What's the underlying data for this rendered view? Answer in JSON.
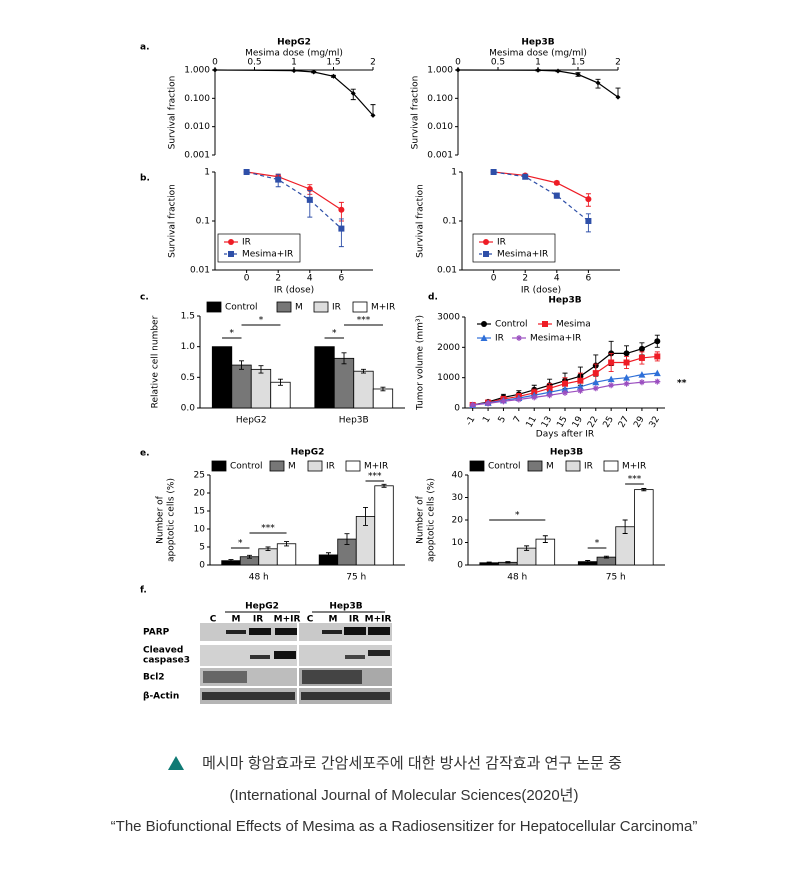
{
  "chart_data": [
    {
      "type": "line",
      "title": "HepG2",
      "x_label": "Mesima dose (mg/ml)",
      "y_label": "Survival fraction",
      "x_axis_top": true,
      "log_y": true,
      "color": "#000000",
      "marker": "diamond",
      "x": [
        0,
        1,
        1.25,
        1.5,
        1.75,
        2
      ],
      "values": [
        1,
        0.95,
        0.85,
        0.6,
        0.15,
        0.025
      ],
      "errors": [
        0,
        0.03,
        0.05,
        0.05,
        0.06,
        0.035
      ],
      "xlim": [
        0,
        2
      ],
      "xticks": [
        0,
        0.5,
        1,
        1.5,
        2
      ],
      "ylim": [
        0.001,
        1
      ],
      "yticks": [
        {
          "value": 1,
          "label": "1.000"
        },
        {
          "value": 0.1,
          "label": "0.100"
        },
        {
          "value": 0.01,
          "label": "0.010"
        },
        {
          "value": 0.001,
          "label": "0.001"
        }
      ]
    },
    {
      "type": "line",
      "title": "Hep3B",
      "x_label": "Mesima dose (mg/ml)",
      "y_label": "Survival fraction",
      "x_axis_top": true,
      "log_y": true,
      "color": "#000000",
      "marker": "diamond",
      "x": [
        0,
        1,
        1.25,
        1.5,
        1.75,
        2
      ],
      "values": [
        1,
        0.98,
        0.92,
        0.7,
        0.35,
        0.11
      ],
      "errors": [
        0,
        0.05,
        0.05,
        0.1,
        0.12,
        0.12
      ],
      "xlim": [
        0,
        2
      ],
      "xticks": [
        0,
        0.5,
        1,
        1.5,
        2
      ],
      "ylim": [
        0.001,
        1
      ],
      "yticks": [
        {
          "value": 1,
          "label": "1.000"
        },
        {
          "value": 0.1,
          "label": "0.100"
        },
        {
          "value": 0.01,
          "label": "0.010"
        },
        {
          "value": 0.001,
          "label": "0.001"
        }
      ]
    },
    {
      "type": "line",
      "x_label": "IR (dose)",
      "y_label": "Survival fraction",
      "log_y": true,
      "legend": "lower left",
      "x": [
        0,
        2,
        4,
        6
      ],
      "series": [
        {
          "name": "IR",
          "color": "#ee1c25",
          "marker": "circle",
          "values": [
            1,
            0.8,
            0.45,
            0.17
          ],
          "errors": [
            0,
            0.1,
            0.1,
            0.07
          ]
        },
        {
          "name": "Mesima+IR",
          "color": "#2e4fa8",
          "marker": "square",
          "dashed": true,
          "values": [
            1,
            0.7,
            0.27,
            0.07
          ],
          "errors": [
            0,
            0.2,
            0.15,
            0.04
          ]
        }
      ],
      "xlim": [
        -2,
        8
      ],
      "xticks": [
        0,
        2,
        4,
        6
      ],
      "ylim": [
        0.01,
        1
      ],
      "yticks": [
        1,
        0.1,
        0.01
      ]
    },
    {
      "type": "line",
      "x_label": "IR (dose)",
      "y_label": "Survival fraction",
      "log_y": true,
      "legend": "lower left",
      "x": [
        0,
        2,
        4,
        6
      ],
      "series": [
        {
          "name": "IR",
          "color": "#ee1c25",
          "marker": "circle",
          "values": [
            1,
            0.85,
            0.6,
            0.28
          ],
          "errors": [
            0,
            0.05,
            0.05,
            0.08
          ]
        },
        {
          "name": "Mesima+IR",
          "color": "#2e4fa8",
          "marker": "square",
          "dashed": true,
          "values": [
            1,
            0.8,
            0.33,
            0.1
          ],
          "errors": [
            0,
            0.05,
            0.04,
            0.04
          ]
        }
      ],
      "xlim": [
        -2,
        8
      ],
      "xticks": [
        0,
        2,
        4,
        6
      ],
      "ylim": [
        0.01,
        1
      ],
      "yticks": [
        1,
        0.1,
        0.01
      ]
    },
    {
      "type": "bar",
      "y_label": "Relative cell number",
      "legend": "top",
      "categories": [
        "HepG2",
        "Hep3B"
      ],
      "series": [
        {
          "name": "Control",
          "color": "#000000",
          "values": [
            1.0,
            1.0
          ],
          "errors": [
            0,
            0
          ]
        },
        {
          "name": "M",
          "color": "#777777",
          "values": [
            0.7,
            0.81
          ],
          "errors": [
            0.07,
            0.09
          ]
        },
        {
          "name": "IR",
          "color": "#dddddd",
          "values": [
            0.63,
            0.6
          ],
          "errors": [
            0.06,
            0.03
          ]
        },
        {
          "name": "M+IR",
          "color": "#ffffff",
          "values": [
            0.42,
            0.31
          ],
          "errors": [
            0.05,
            0.03
          ]
        }
      ],
      "annotations": [
        "*",
        "*",
        "*",
        "***"
      ],
      "ylim": [
        0,
        1.5
      ],
      "yticks": [
        {
          "value": 0,
          "label": "0.0"
        },
        {
          "value": 0.5,
          "label": "0.5"
        },
        {
          "value": 1,
          "label": "1.0"
        },
        {
          "value": 1.5,
          "label": "1.5"
        }
      ]
    },
    {
      "type": "line",
      "title": "Hep3B",
      "x_label": "Days after IR",
      "y_label": "Tumor volume (mm³)",
      "legend": "upper left",
      "categories": [
        "-1",
        "1",
        "5",
        "7",
        "11",
        "13",
        "15",
        "19",
        "22",
        "25",
        "27",
        "29",
        "32"
      ],
      "series": [
        {
          "name": "Control",
          "color": "#000000",
          "marker": "circle",
          "values": [
            100,
            200,
            350,
            450,
            600,
            750,
            900,
            1050,
            1400,
            1800,
            1800,
            1950,
            2200
          ],
          "errors": [
            20,
            50,
            100,
            120,
            150,
            200,
            250,
            300,
            350,
            400,
            250,
            200,
            200
          ]
        },
        {
          "name": "Mesima",
          "color": "#ee1c25",
          "marker": "square",
          "values": [
            100,
            180,
            300,
            380,
            500,
            650,
            800,
            900,
            1150,
            1500,
            1500,
            1650,
            1700
          ],
          "errors": [
            20,
            40,
            80,
            100,
            120,
            150,
            200,
            250,
            300,
            300,
            200,
            200,
            150
          ]
        },
        {
          "name": "IR",
          "color": "#2e6fd8",
          "marker": "triangle",
          "values": [
            100,
            170,
            250,
            330,
            420,
            520,
            620,
            700,
            850,
            950,
            1000,
            1100,
            1150
          ]
        },
        {
          "name": "Mesima+IR",
          "color": "#9b4fc0",
          "marker": "star",
          "values": [
            100,
            150,
            220,
            280,
            350,
            420,
            500,
            570,
            650,
            750,
            800,
            850,
            870
          ]
        }
      ],
      "annotations": [
        "**"
      ],
      "ylim": [
        0,
        3000
      ],
      "yticks": [
        0,
        1000,
        2000,
        3000
      ]
    },
    {
      "type": "bar",
      "title": "HepG2",
      "y_label": [
        "Number of",
        "apoptotic cells (%)"
      ],
      "legend": "top",
      "categories": [
        "48 h",
        "75 h"
      ],
      "series": [
        {
          "name": "Control",
          "color": "#000000",
          "values": [
            1.2,
            2.8
          ],
          "errors": [
            0.3,
            0.6
          ]
        },
        {
          "name": "M",
          "color": "#777777",
          "values": [
            2.3,
            7.2
          ],
          "errors": [
            0.4,
            1.5
          ]
        },
        {
          "name": "IR",
          "color": "#dddddd",
          "values": [
            4.5,
            13.5
          ],
          "errors": [
            0.5,
            2.5
          ]
        },
        {
          "name": "M+IR",
          "color": "#ffffff",
          "values": [
            5.9,
            22
          ],
          "errors": [
            0.6,
            0.4
          ]
        }
      ],
      "annotations": [
        "*",
        "***",
        "***"
      ],
      "ylim": [
        0,
        25
      ],
      "yticks": [
        0,
        5,
        10,
        15,
        20,
        25
      ]
    },
    {
      "type": "bar",
      "title": "Hep3B",
      "y_label": [
        "Number of",
        "apoptotic cells (%)"
      ],
      "legend": "top",
      "categories": [
        "48 h",
        "75 h"
      ],
      "series": [
        {
          "name": "Control",
          "color": "#000000",
          "values": [
            1,
            1.5
          ],
          "errors": [
            0.3,
            0.5
          ]
        },
        {
          "name": "M",
          "color": "#777777",
          "values": [
            1.2,
            3.5
          ],
          "errors": [
            0.3,
            0.4
          ]
        },
        {
          "name": "IR",
          "color": "#dddddd",
          "values": [
            7.5,
            17
          ],
          "errors": [
            1,
            3
          ]
        },
        {
          "name": "M+IR",
          "color": "#ffffff",
          "values": [
            11.5,
            33.5
          ],
          "errors": [
            1.5,
            0.5
          ]
        }
      ],
      "annotations": [
        "*",
        "*",
        "***"
      ],
      "ylim": [
        0,
        40
      ],
      "yticks": [
        0,
        10,
        20,
        30,
        40
      ]
    }
  ],
  "panel_labels": [
    "a.",
    "b.",
    "c.",
    "d.",
    "e.",
    "f."
  ],
  "blot": {
    "cell_lines": [
      "HepG2",
      "Hep3B"
    ],
    "lanes": [
      "C",
      "M",
      "IR",
      "M+IR",
      "C",
      "M",
      "IR",
      "M+IR"
    ],
    "rows": [
      [
        "PARP"
      ],
      [
        "Cleaved",
        "caspase3"
      ],
      [
        "Bcl2"
      ],
      [
        "β-Actin"
      ]
    ]
  },
  "caption": {
    "line1": "메시마 항암효과로 간암세포주에 대한 방사선 감작효과 연구 논문 중",
    "line2": "(International Journal of Molecular Sciences(2020년)",
    "line3": "“The Biofunctional Effects of Mesima as a Radiosensitizer for Hepatocellular Carcinoma”"
  }
}
